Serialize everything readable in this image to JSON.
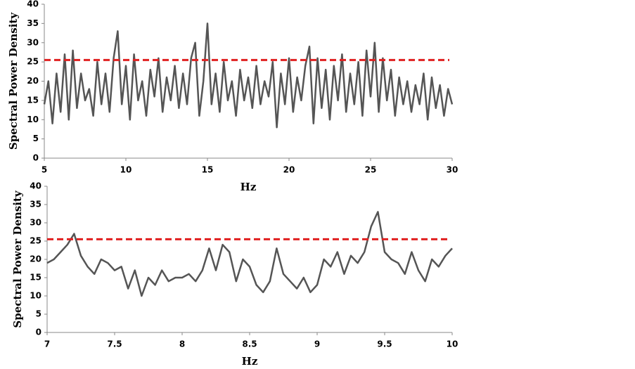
{
  "chart_data": [
    {
      "type": "line",
      "xlabel": "Hz",
      "ylabel": "Spectral Power Density",
      "color": "#555555",
      "xlim": [
        5,
        30
      ],
      "xticks": [
        5,
        10,
        15,
        20,
        25,
        30
      ],
      "ylim": [
        0,
        40
      ],
      "yticks": [
        0,
        5,
        10,
        15,
        20,
        25,
        30,
        35,
        40
      ],
      "reference_line": {
        "value": 25.5,
        "color": "#e02020"
      },
      "x": [
        5,
        5.25,
        5.5,
        5.75,
        6,
        6.25,
        6.5,
        6.75,
        7,
        7.25,
        7.5,
        7.75,
        8,
        8.25,
        8.5,
        8.75,
        9,
        9.25,
        9.5,
        9.75,
        10,
        10.25,
        10.5,
        10.75,
        11,
        11.25,
        11.5,
        11.75,
        12,
        12.25,
        12.5,
        12.75,
        13,
        13.25,
        13.5,
        13.75,
        14,
        14.25,
        14.5,
        14.75,
        15,
        15.25,
        15.5,
        15.75,
        16,
        16.25,
        16.5,
        16.75,
        17,
        17.25,
        17.5,
        17.75,
        18,
        18.25,
        18.5,
        18.75,
        19,
        19.25,
        19.5,
        19.75,
        20,
        20.25,
        20.5,
        20.75,
        21,
        21.25,
        21.5,
        21.75,
        22,
        22.25,
        22.5,
        22.75,
        23,
        23.25,
        23.5,
        23.75,
        24,
        24.25,
        24.5,
        24.75,
        25,
        25.25,
        25.5,
        25.75,
        26,
        26.25,
        26.5,
        26.75,
        27,
        27.25,
        27.5,
        27.75,
        28,
        28.25,
        28.5,
        28.75,
        29,
        29.25,
        29.5,
        29.75,
        30
      ],
      "values": [
        14,
        20,
        9,
        22,
        12,
        27,
        10,
        28,
        13,
        22,
        15,
        18,
        11,
        25,
        14,
        22,
        12,
        26,
        33,
        14,
        24,
        10,
        27,
        15,
        20,
        11,
        23,
        16,
        26,
        12,
        21,
        15,
        24,
        13,
        22,
        14,
        26,
        30,
        11,
        20,
        35,
        14,
        22,
        12,
        25,
        15,
        20,
        11,
        23,
        15,
        21,
        13,
        24,
        14,
        20,
        16,
        25,
        8,
        22,
        14,
        26,
        12,
        21,
        15,
        24,
        29,
        9,
        26,
        13,
        23,
        10,
        24,
        15,
        27,
        12,
        22,
        14,
        25,
        11,
        28,
        16,
        30,
        12,
        26,
        15,
        23,
        11,
        21,
        14,
        20,
        12,
        19,
        14,
        22,
        10,
        21,
        13,
        19,
        11,
        18,
        14
      ]
    },
    {
      "type": "line",
      "xlabel": "Hz",
      "ylabel": "Spectral Power Density",
      "color": "#555555",
      "xlim": [
        7,
        10
      ],
      "xticks": [
        7,
        7.5,
        8,
        8.5,
        9,
        9.5,
        10
      ],
      "ylim": [
        0,
        40
      ],
      "yticks": [
        0,
        5,
        10,
        15,
        20,
        25,
        30,
        35,
        40
      ],
      "reference_line": {
        "value": 25.5,
        "color": "#e02020"
      },
      "x": [
        7,
        7.05,
        7.1,
        7.15,
        7.2,
        7.25,
        7.3,
        7.35,
        7.4,
        7.45,
        7.5,
        7.55,
        7.6,
        7.65,
        7.7,
        7.75,
        7.8,
        7.85,
        7.9,
        7.95,
        8,
        8.05,
        8.1,
        8.15,
        8.2,
        8.25,
        8.3,
        8.35,
        8.4,
        8.45,
        8.5,
        8.55,
        8.6,
        8.65,
        8.7,
        8.75,
        8.8,
        8.85,
        8.9,
        8.95,
        9,
        9.05,
        9.1,
        9.15,
        9.2,
        9.25,
        9.3,
        9.35,
        9.4,
        9.45,
        9.5,
        9.55,
        9.6,
        9.65,
        9.7,
        9.75,
        9.8,
        9.85,
        9.9,
        9.95,
        10
      ],
      "values": [
        19,
        20,
        22,
        24,
        27,
        21,
        18,
        16,
        20,
        19,
        17,
        18,
        12,
        17,
        10,
        15,
        13,
        17,
        14,
        15,
        15,
        16,
        14,
        17,
        23,
        17,
        24,
        22,
        14,
        20,
        18,
        13,
        11,
        14,
        23,
        16,
        14,
        12,
        15,
        11,
        13,
        20,
        18,
        22,
        16,
        21,
        19,
        22,
        29,
        33,
        22,
        20,
        19,
        16,
        22,
        17,
        14,
        20,
        18,
        21,
        23
      ]
    }
  ]
}
